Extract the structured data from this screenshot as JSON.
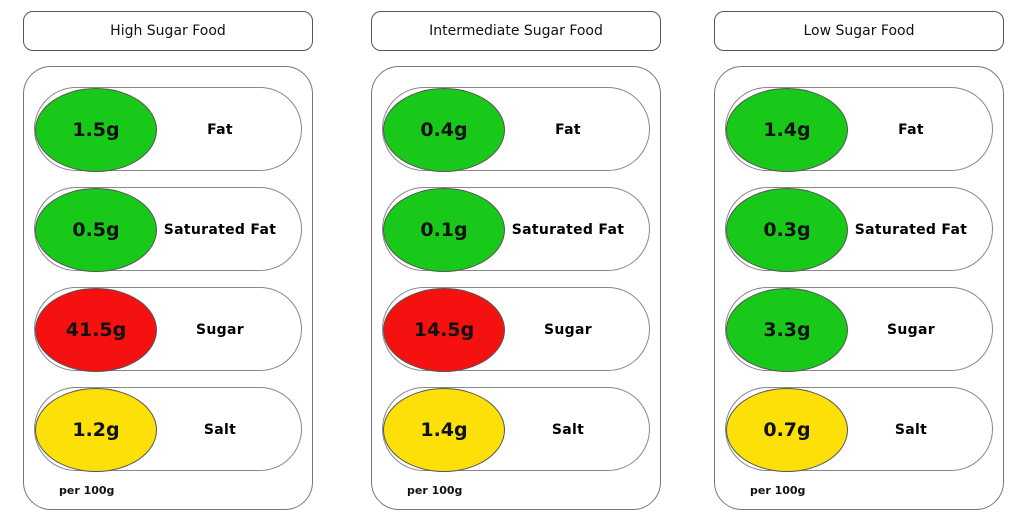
{
  "panels": [
    {
      "title": "High Sugar Food",
      "rows": [
        {
          "value": "1.5g",
          "label": "Fat",
          "level": "green"
        },
        {
          "value": "0.5g",
          "label": "Saturated Fat",
          "level": "green"
        },
        {
          "value": "41.5g",
          "label": "Sugar",
          "level": "red"
        },
        {
          "value": "1.2g",
          "label": "Salt",
          "level": "amber"
        }
      ],
      "footnote": "per 100g"
    },
    {
      "title": "Intermediate Sugar Food",
      "rows": [
        {
          "value": "0.4g",
          "label": "Fat",
          "level": "green"
        },
        {
          "value": "0.1g",
          "label": "Saturated Fat",
          "level": "green"
        },
        {
          "value": "14.5g",
          "label": "Sugar",
          "level": "red"
        },
        {
          "value": "1.4g",
          "label": "Salt",
          "level": "amber"
        }
      ],
      "footnote": "per 100g"
    },
    {
      "title": "Low Sugar Food",
      "rows": [
        {
          "value": "1.4g",
          "label": "Fat",
          "level": "green"
        },
        {
          "value": "0.3g",
          "label": "Saturated Fat",
          "level": "green"
        },
        {
          "value": "3.3g",
          "label": "Sugar",
          "level": "green"
        },
        {
          "value": "0.7g",
          "label": "Salt",
          "level": "amber"
        }
      ],
      "footnote": "per 100g"
    }
  ],
  "colors": {
    "green": "#19c919",
    "red": "#f61111",
    "amber": "#fde008"
  }
}
